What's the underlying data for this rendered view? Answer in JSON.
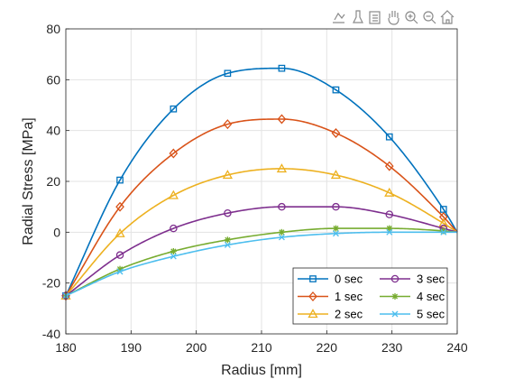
{
  "toolbar": {
    "icons": [
      "data-tip-icon",
      "brush-icon",
      "export-icon",
      "pan-hand-icon",
      "zoom-in-icon",
      "zoom-out-icon",
      "home-icon"
    ]
  },
  "chart_data": {
    "type": "line",
    "xlabel": "Radius [mm]",
    "ylabel": "Radial Stress [MPa]",
    "xlim": [
      180,
      240
    ],
    "ylim": [
      -40,
      80
    ],
    "xticks": [
      180,
      190,
      200,
      210,
      220,
      230,
      240
    ],
    "yticks": [
      -40,
      -20,
      0,
      20,
      40,
      60,
      80
    ],
    "grid": true,
    "legend_position": "bottom-right",
    "legend_columns": 2,
    "marker_x": [
      180,
      188.3,
      196.5,
      204.8,
      213.1,
      221.4,
      229.6,
      237.9
    ],
    "series": [
      {
        "name": "0 sec",
        "color": "#0072BD",
        "marker": "square",
        "x": [
          180,
          188.3,
          196.5,
          204.8,
          213.1,
          221.4,
          229.6,
          237.9,
          240
        ],
        "values": [
          -25,
          20.5,
          48.5,
          62.5,
          64.5,
          56,
          37.5,
          9,
          0
        ]
      },
      {
        "name": "1 sec",
        "color": "#D95319",
        "marker": "diamond",
        "x": [
          180,
          188.3,
          196.5,
          204.8,
          213.1,
          221.4,
          229.6,
          237.9,
          240
        ],
        "values": [
          -25,
          10,
          31,
          42.5,
          44.5,
          39,
          26,
          6,
          0
        ]
      },
      {
        "name": "2 sec",
        "color": "#EDB120",
        "marker": "triangle",
        "x": [
          180,
          188.3,
          196.5,
          204.8,
          213.1,
          221.4,
          229.6,
          237.9,
          240
        ],
        "values": [
          -25,
          -0.5,
          14.5,
          22.5,
          25,
          22.5,
          15.5,
          3.5,
          0
        ]
      },
      {
        "name": "3 sec",
        "color": "#7E2F8E",
        "marker": "circle",
        "x": [
          180,
          188.3,
          196.5,
          204.8,
          213.1,
          221.4,
          229.6,
          237.9,
          240
        ],
        "values": [
          -25,
          -9,
          1.5,
          7.5,
          10,
          10,
          7,
          1.5,
          0
        ]
      },
      {
        "name": "4 sec",
        "color": "#77AC30",
        "marker": "asterisk",
        "x": [
          180,
          188.3,
          196.5,
          204.8,
          213.1,
          221.4,
          229.6,
          237.9,
          240
        ],
        "values": [
          -25,
          -14.5,
          -7.5,
          -3,
          0,
          1.5,
          1.5,
          0.5,
          0
        ]
      },
      {
        "name": "5 sec",
        "color": "#4DBEEE",
        "marker": "cross",
        "x": [
          180,
          188.3,
          196.5,
          204.8,
          213.1,
          221.4,
          229.6,
          237.9,
          240
        ],
        "values": [
          -25,
          -15.5,
          -9.5,
          -5,
          -2,
          -0.5,
          0,
          0,
          0
        ]
      }
    ]
  }
}
